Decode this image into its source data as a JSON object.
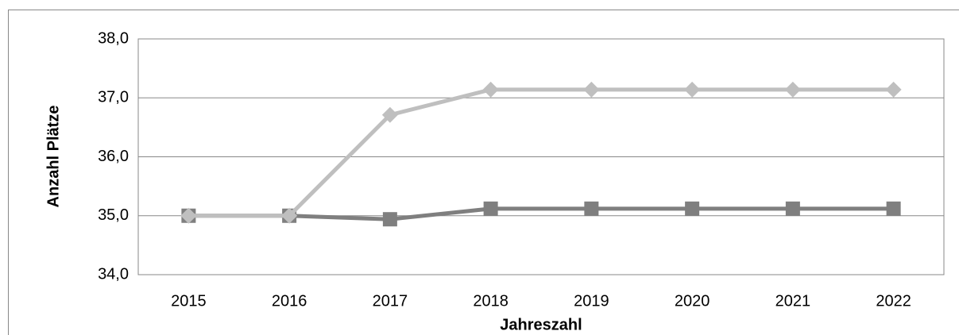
{
  "chart_data": {
    "type": "line",
    "x_label": "Jahreszahl",
    "y_label": "Anzahl Plätze",
    "categories": [
      "2015",
      "2016",
      "2017",
      "2018",
      "2019",
      "2020",
      "2021",
      "2022"
    ],
    "series": [
      {
        "color": "#7f7f7f",
        "marker": "square",
        "values": [
          35.0,
          35.0,
          34.94,
          35.12,
          35.12,
          35.12,
          35.12,
          35.12
        ]
      },
      {
        "color": "#bfbfbf",
        "marker": "diamond",
        "values": [
          35.0,
          35.0,
          36.71,
          37.14,
          37.14,
          37.14,
          37.14,
          37.14
        ]
      }
    ],
    "ylim": [
      34,
      38
    ],
    "yticks": [
      {
        "value": 34,
        "label": "34,0"
      },
      {
        "value": 35,
        "label": "35,0"
      },
      {
        "value": 36,
        "label": "36,0"
      },
      {
        "value": 37,
        "label": "37,0"
      },
      {
        "value": 38,
        "label": "38,0"
      }
    ],
    "grid": true
  }
}
